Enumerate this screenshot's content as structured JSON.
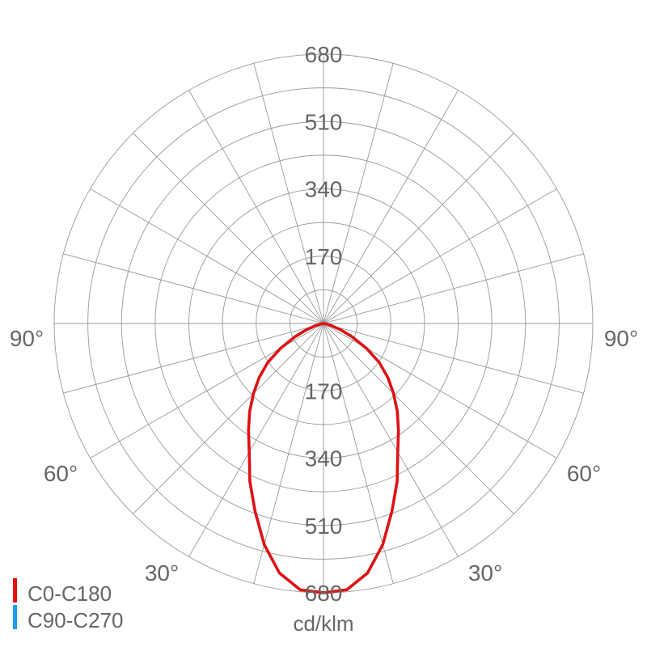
{
  "chart_data": {
    "type": "polar",
    "unit_label": "cd/klm",
    "radial_ticks": [
      170,
      340,
      510,
      680
    ],
    "rmax": 680,
    "minor_ring_step": 85,
    "angle_step_deg": 15,
    "angle_labels": [
      "90°",
      "60°",
      "30°"
    ],
    "grid": true,
    "legend_position": "bottom-left",
    "series": [
      {
        "name": "C90-C270",
        "color": "#1e9be9",
        "angles": [
          0,
          5,
          10,
          15,
          20,
          25,
          30,
          35,
          40,
          45,
          50,
          55,
          60,
          65,
          70,
          75,
          80,
          85,
          90
        ],
        "values": [
          680,
          675,
          640,
          578,
          505,
          440,
          375,
          330,
          290,
          250,
          212,
          172,
          125,
          80,
          45,
          20,
          8,
          3,
          0
        ]
      },
      {
        "name": "C0-C180",
        "color": "#e31010",
        "angles": [
          0,
          5,
          10,
          15,
          20,
          25,
          30,
          35,
          40,
          45,
          50,
          55,
          60,
          65,
          70,
          75,
          80,
          85,
          90
        ],
        "values": [
          680,
          675,
          640,
          578,
          505,
          440,
          375,
          330,
          290,
          250,
          212,
          172,
          125,
          80,
          45,
          20,
          8,
          3,
          0
        ]
      }
    ]
  }
}
